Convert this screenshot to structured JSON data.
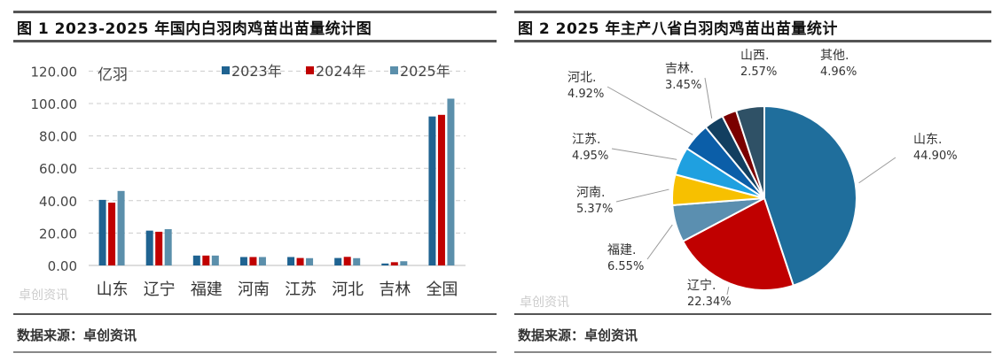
{
  "chart_data": [
    {
      "type": "bar",
      "title": "图 1 2023-2025 年国内白羽肉鸡苗出苗量统计图",
      "ylabel": "亿羽",
      "ylim": [
        0,
        120
      ],
      "yticks": [
        "0.00",
        "20.00",
        "40.00",
        "60.00",
        "80.00",
        "100.00",
        "120.00"
      ],
      "categories": [
        "山东",
        "辽宁",
        "福建",
        "河南",
        "江苏",
        "河北",
        "吉林",
        "全国"
      ],
      "series": [
        {
          "name": "2023年",
          "color": "#1f6391",
          "values": [
            40.5,
            21.5,
            6.1,
            5.2,
            5.2,
            4.6,
            1.2,
            92
          ]
        },
        {
          "name": "2024年",
          "color": "#c00000",
          "values": [
            38.8,
            20.8,
            6.1,
            5.2,
            4.6,
            5.3,
            2.0,
            93
          ]
        },
        {
          "name": "2025年",
          "color": "#5b8fab",
          "values": [
            46,
            22.4,
            6.1,
            5.2,
            4.5,
            4.5,
            2.6,
            103
          ]
        }
      ],
      "legend": "top",
      "grid": true,
      "source": "数据来源：卓创资讯",
      "watermark": "卓创资讯 SCI99.COM"
    },
    {
      "type": "pie",
      "title": "图 2 2025 年主产八省白羽肉鸡苗出苗量统计",
      "slices": [
        {
          "label": "山东.",
          "pct": "44.90%",
          "value": 44.9,
          "color": "#1f6e9c"
        },
        {
          "label": "辽宁.",
          "pct": "22.34%",
          "value": 22.34,
          "color": "#c00000"
        },
        {
          "label": "福建.",
          "pct": "6.55%",
          "value": 6.55,
          "color": "#5b8fb0"
        },
        {
          "label": "河南.",
          "pct": "5.37%",
          "value": 5.37,
          "color": "#f7c000"
        },
        {
          "label": "江苏.",
          "pct": "4.95%",
          "value": 4.95,
          "color": "#1fa0e0"
        },
        {
          "label": "河北.",
          "pct": "4.92%",
          "value": 4.92,
          "color": "#0b5ea8"
        },
        {
          "label": "吉林.",
          "pct": "3.45%",
          "value": 3.45,
          "color": "#123f60"
        },
        {
          "label": "山西.",
          "pct": "2.57%",
          "value": 2.57,
          "color": "#7a0000"
        },
        {
          "label": "其他.",
          "pct": "4.96%",
          "value": 4.96,
          "color": "#2f5166"
        }
      ],
      "source": "数据来源：卓创资讯",
      "watermark": "卓创资讯 SCI99.COM"
    }
  ]
}
